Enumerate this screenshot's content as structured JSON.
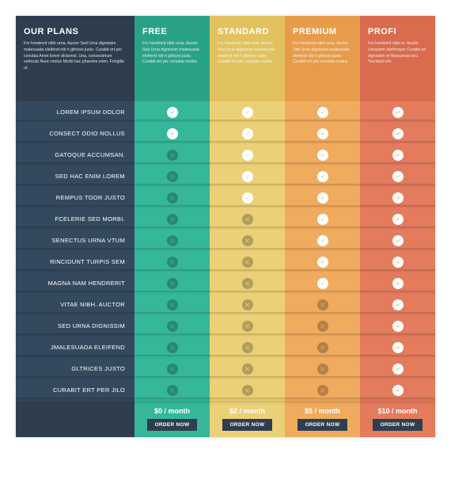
{
  "labels_col": {
    "title": "OUR PLANS",
    "desc": "Fm hendrerit nibh urna. Auctor Sed Urna dignissim malesuada eleifend nib h gltrices justo. Curabit ert per conubia Amet lorem dictumst. Una, consectetuer vehicula Nunc metus Morbi hac pharetra enim. Fringilla ut.",
    "bg": "#2e3e4f",
    "text": "#ffffff"
  },
  "features": [
    "LOREM IPSUM DOLOR",
    "CONSECT ODIO NOLLUS",
    "GATOQUE ACCUMSAN.",
    "SED HAC ENIM LOREM",
    "REMPUS TOOR JUSTO",
    "FCELERIE SED MORBI.",
    "SENECTUS URNA VTUM",
    "RINCIDUNT TURPIS SEM",
    "MAGNA NAM HENDRERIT",
    "VITAE NIBH. AUCTOR",
    "SED URNA DIGNISSIM",
    "JMALESUADA ELEIFEND",
    "GLTRICES JUSTO",
    "CURABIT ERT PER JILO"
  ],
  "labels_row_bg": "#34495e",
  "plans": [
    {
      "name": "FREE",
      "desc": "Fm hendrerit nibh urna. Auctor Sed Urna dignissim malesuada eleifend nib h gltrices justo. Curabit ert per conubia nostra.",
      "header_bg": "#2aa287",
      "row_bg": "#36b79a",
      "text": "#ffffff",
      "price": "$0 / month",
      "btn_bg": "#2e3e4f",
      "btn_text": "#ffffff",
      "btn_label": "ORDER NOW",
      "values": [
        true,
        true,
        false,
        false,
        false,
        false,
        false,
        false,
        false,
        false,
        false,
        false,
        false,
        false
      ]
    },
    {
      "name": "STANDARD",
      "desc": "Fm hendrerit nibh urna. Auctor Sed Urna dignissim malesuada eleifend nib h gltrices justo. Curabit ert per conubia nostra.",
      "header_bg": "#e1c25f",
      "row_bg": "#ecd077",
      "text": "#ffffff",
      "price": "$2 / month",
      "btn_bg": "#2e3e4f",
      "btn_text": "#ffffff",
      "btn_label": "ORDER NOW",
      "values": [
        true,
        true,
        true,
        true,
        true,
        false,
        false,
        false,
        false,
        false,
        false,
        false,
        false,
        false
      ]
    },
    {
      "name": "PREMIUM",
      "desc": "Fm hendrerit nibh urna. Auctor Sed Urna dignissim malesuada eleifend nib h gltrices justo. Curabit ert per conubia nostra.",
      "header_bg": "#e79c4b",
      "row_bg": "#f0ab5f",
      "text": "#ffffff",
      "price": "$5 / month",
      "btn_bg": "#2e3e4f",
      "btn_text": "#ffffff",
      "btn_label": "ORDER NOW",
      "values": [
        true,
        true,
        true,
        true,
        true,
        true,
        true,
        true,
        true,
        false,
        false,
        false,
        false,
        false
      ]
    },
    {
      "name": "PROFI",
      "desc": "Fm hendrerit nibh m. Auctor Urnassim eleifenrper Curabit ert dignissim er Maecenas orci. Tincidunt elit.",
      "header_bg": "#d96b4e",
      "row_bg": "#e47b5d",
      "text": "#ffffff",
      "price": "$10 / month",
      "btn_bg": "#2e3e4f",
      "btn_text": "#ffffff",
      "btn_label": "ORDER NOW",
      "values": [
        true,
        true,
        true,
        true,
        true,
        true,
        true,
        true,
        true,
        true,
        true,
        true,
        true,
        true
      ]
    }
  ],
  "icon_check_fill": "#ffffff",
  "icon_cross_opacity": 0.25
}
